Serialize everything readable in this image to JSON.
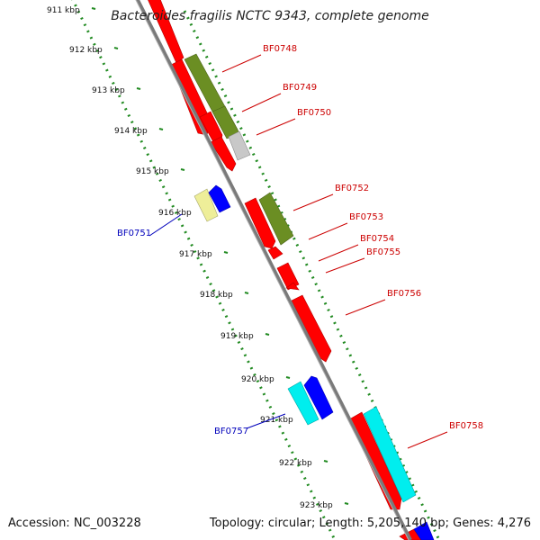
{
  "header": {
    "title": "Bacteroides fragilis NCTC 9343, complete genome"
  },
  "footer": {
    "accession": "Accession: NC_003228",
    "summary": "Topology: circular; Length: 5,205,140 bp; Genes: 4,276"
  },
  "colors": {
    "red_gene": "#ff0000",
    "olive_gene": "#6b8e23",
    "grey_gene": "#c8c8c8",
    "khaki_gene": "#eeee99",
    "blue_gene": "#0000ff",
    "cyan_gene": "#00eeee",
    "teal_gene": "#20b2aa",
    "backbone": "#7a7a7a",
    "ruler_dots": "#228b22",
    "forward_label": "#cc0000",
    "reverse_label": "#0000bb"
  },
  "map": {
    "ticks": [
      "911 kbp",
      "912 kbp",
      "913 kbp",
      "914 kbp",
      "915 kbp",
      "916 kbp",
      "917 kbp",
      "918 kbp",
      "919 kbp",
      "920 kbp",
      "921 kbp",
      "922 kbp",
      "923 kbp"
    ],
    "forward_labels": [
      "BF0748",
      "BF0749",
      "BF0750",
      "BF0752",
      "BF0753",
      "BF0754",
      "BF0755",
      "BF0756",
      "BF0758"
    ],
    "reverse_labels": [
      "BF0751",
      "BF0757"
    ]
  }
}
